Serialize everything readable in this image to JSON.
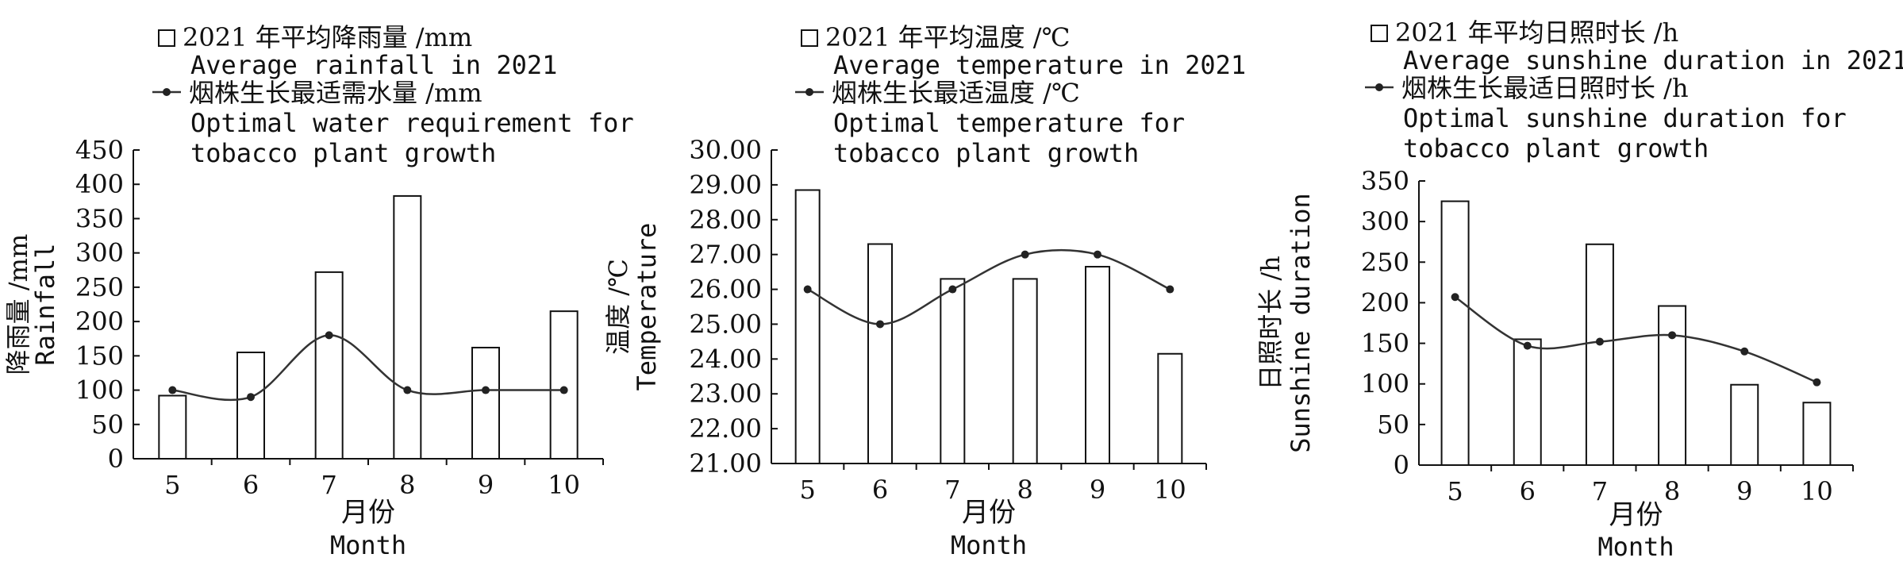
{
  "chart_data": [
    {
      "type": "bar+line",
      "legend": {
        "bar_label_cn": "2021 年平均降雨量 /mm",
        "bar_label_en": "Average rainfall in 2021",
        "line_label_cn": "烟株生长最适需水量 /mm",
        "line_label_en_1": "Optimal water requirement for",
        "line_label_en_2": "tobacco plant growth"
      },
      "ylabel_cn": "降雨量 /mm",
      "ylabel_en": "Rainfall",
      "xlabel_cn": "月份",
      "xlabel_en": "Month",
      "categories": [
        "5",
        "6",
        "7",
        "8",
        "9",
        "10"
      ],
      "bar_values": [
        92,
        155,
        272,
        383,
        162,
        215
      ],
      "line_values": [
        100,
        90,
        180,
        100,
        100,
        100
      ],
      "ylim": [
        0,
        450
      ],
      "yticks": [
        "0",
        "50",
        "100",
        "150",
        "200",
        "250",
        "300",
        "350",
        "400",
        "450"
      ]
    },
    {
      "type": "bar+line",
      "legend": {
        "bar_label_cn": "2021 年平均温度 /℃",
        "bar_label_en": "Average temperature in 2021",
        "line_label_cn": "烟株生长最适温度 /℃",
        "line_label_en_1": "Optimal temperature for",
        "line_label_en_2": "tobacco plant growth"
      },
      "ylabel_cn": "温度 /℃",
      "ylabel_en": "Temperature",
      "xlabel_cn": "月份",
      "xlabel_en": "Month",
      "categories": [
        "5",
        "6",
        "7",
        "8",
        "9",
        "10"
      ],
      "bar_values": [
        28.85,
        27.3,
        26.3,
        26.3,
        26.65,
        24.15
      ],
      "line_values": [
        26,
        25,
        26,
        27,
        27,
        26
      ],
      "ylim": [
        21,
        30
      ],
      "yticks": [
        "21.00",
        "22.00",
        "23.00",
        "24.00",
        "25.00",
        "26.00",
        "27.00",
        "28.00",
        "29.00",
        "30.00"
      ]
    },
    {
      "type": "bar+line",
      "legend": {
        "bar_label_cn": "2021 年平均日照时长 /h",
        "bar_label_en": "Average sunshine duration in 2021",
        "line_label_cn": "烟株生长最适日照时长 /h",
        "line_label_en_1": "Optimal sunshine duration for",
        "line_label_en_2": "tobacco plant growth"
      },
      "ylabel_cn": "日照时长 /h",
      "ylabel_en": "Sunshine duration",
      "xlabel_cn": "月份",
      "xlabel_en": "Month",
      "categories": [
        "5",
        "6",
        "7",
        "8",
        "9",
        "10"
      ],
      "bar_values": [
        325,
        155,
        272,
        196,
        99,
        77
      ],
      "line_values": [
        207,
        147,
        152,
        160,
        140,
        102
      ],
      "ylim": [
        0,
        350
      ],
      "yticks": [
        "0",
        "50",
        "100",
        "150",
        "200",
        "250",
        "300",
        "350"
      ]
    }
  ]
}
